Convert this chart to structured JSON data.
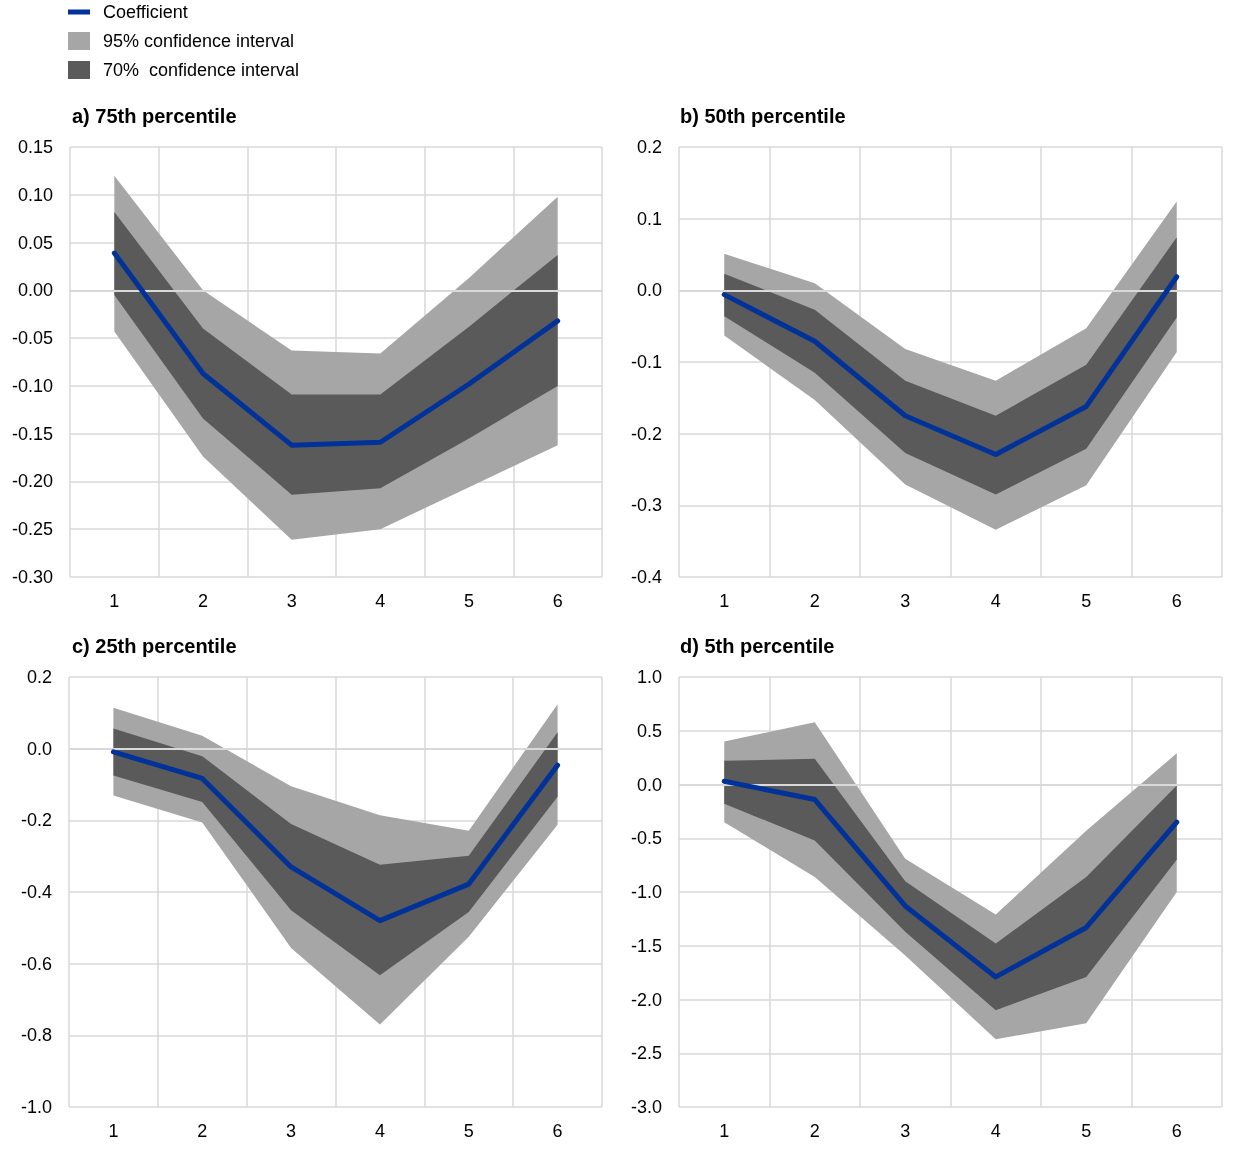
{
  "chart_data": [
    {
      "type": "line",
      "title": "a) 75th percentile",
      "categories": [
        "1",
        "2",
        "3",
        "4",
        "5",
        "6"
      ],
      "series": [
        {
          "name": "Coefficient",
          "color": "#003299",
          "values": [
            0.039,
            -0.087,
            -0.162,
            -0.159,
            -0.098,
            -0.032
          ]
        },
        {
          "name": "95% confidence interval",
          "color": "#a6a6a6",
          "values": [
            null,
            null,
            null,
            null,
            null,
            null
          ],
          "lower": [
            -0.043,
            -0.174,
            -0.261,
            -0.25,
            -0.206,
            -0.162
          ],
          "upper": [
            0.12,
            0.0,
            -0.063,
            -0.066,
            0.013,
            0.098
          ]
        },
        {
          "name": "70%  confidence interval",
          "color": "#5a5a5a",
          "values": [
            null,
            null,
            null,
            null,
            null,
            null
          ],
          "lower": [
            -0.005,
            -0.134,
            -0.214,
            -0.207,
            -0.155,
            -0.1
          ],
          "upper": [
            0.082,
            -0.04,
            -0.109,
            -0.109,
            -0.038,
            0.037
          ]
        }
      ],
      "ylim": [
        -0.3,
        0.15
      ],
      "yticks": [
        {
          "value": -0.3,
          "label": "-0.30"
        },
        -0.25,
        {
          "value": -0.2,
          "label": "-0.20"
        },
        -0.15,
        {
          "value": -0.1,
          "label": "-0.10"
        },
        -0.05,
        {
          "value": 0,
          "label": "0.00"
        },
        0.05,
        {
          "value": 0.1,
          "label": "0.10"
        },
        0.15
      ],
      "grid": true,
      "legend": "top left",
      "marker": "none",
      "line_style": "solid",
      "ref_lines": [
        {
          "axis": "y",
          "value": 0,
          "color": "#d9d9d9"
        }
      ]
    },
    {
      "type": "line",
      "title": "b) 50th percentile",
      "categories": [
        "1",
        "2",
        "3",
        "4",
        "5",
        "6"
      ],
      "series": [
        {
          "color": "#003299",
          "values": [
            -0.006,
            -0.071,
            -0.175,
            -0.229,
            -0.162,
            0.019
          ]
        },
        {
          "color": "#a6a6a6",
          "values": [
            null,
            null,
            null,
            null,
            null,
            null
          ],
          "lower": [
            -0.063,
            -0.153,
            -0.271,
            -0.334,
            -0.272,
            -0.086
          ],
          "upper": [
            0.051,
            0.01,
            -0.082,
            -0.126,
            -0.053,
            0.124
          ]
        },
        {
          "color": "#5a5a5a",
          "values": [
            null,
            null,
            null,
            null,
            null,
            null
          ],
          "lower": [
            -0.036,
            -0.115,
            -0.227,
            -0.285,
            -0.221,
            -0.038
          ],
          "upper": [
            0.023,
            -0.027,
            -0.126,
            -0.175,
            -0.104,
            0.074
          ]
        }
      ],
      "ylim": [
        -0.4,
        0.2
      ],
      "yticks": [
        -0.4,
        -0.3,
        -0.2,
        -0.1,
        {
          "value": 0,
          "label": "0.0"
        },
        0.1,
        0.2
      ],
      "grid": true,
      "marker": "none",
      "line_style": "solid",
      "ref_lines": [
        {
          "axis": "y",
          "value": 0,
          "color": "#d9d9d9"
        }
      ]
    },
    {
      "type": "line",
      "title": "c) 25th percentile",
      "categories": [
        "1",
        "2",
        "3",
        "4",
        "5",
        "6"
      ],
      "series": [
        {
          "color": "#003299",
          "values": [
            -0.009,
            -0.083,
            -0.33,
            -0.48,
            -0.378,
            -0.046
          ]
        },
        {
          "color": "#a6a6a6",
          "values": [
            null,
            null,
            null,
            null,
            null,
            null
          ],
          "lower": [
            -0.131,
            -0.206,
            -0.556,
            -0.77,
            -0.525,
            -0.212
          ],
          "upper": [
            0.114,
            0.036,
            -0.105,
            -0.186,
            -0.229,
            0.124
          ]
        },
        {
          "color": "#5a5a5a",
          "values": [
            null,
            null,
            null,
            null,
            null,
            null
          ],
          "lower": [
            -0.075,
            -0.149,
            -0.451,
            -0.632,
            -0.456,
            -0.134
          ],
          "upper": [
            0.056,
            -0.021,
            -0.21,
            -0.324,
            -0.299,
            0.046
          ]
        }
      ],
      "ylim": [
        -1.0,
        0.2
      ],
      "yticks": [
        {
          "value": -1,
          "label": "-1.0"
        },
        -0.8,
        -0.6,
        -0.4,
        -0.2,
        {
          "value": 0,
          "label": "0.0"
        },
        0.2
      ],
      "grid": true,
      "marker": "none",
      "line_style": "solid",
      "ref_lines": [
        {
          "axis": "y",
          "value": 0,
          "color": "#d9d9d9"
        }
      ]
    },
    {
      "type": "line",
      "title": "d) 5th percentile",
      "categories": [
        "1",
        "2",
        "3",
        "4",
        "5",
        "6"
      ],
      "series": [
        {
          "color": "#003299",
          "values": [
            0.03,
            -0.14,
            -1.13,
            -1.79,
            -1.33,
            -0.35
          ]
        },
        {
          "color": "#a6a6a6",
          "values": [
            null,
            null,
            null,
            null,
            null,
            null
          ],
          "lower": [
            -0.35,
            -0.86,
            -1.59,
            -2.37,
            -2.22,
            -1.0
          ],
          "upper": [
            0.4,
            0.58,
            -0.69,
            -1.21,
            -0.43,
            0.29
          ]
        },
        {
          "color": "#5a5a5a",
          "values": [
            null,
            null,
            null,
            null,
            null,
            null
          ],
          "lower": [
            -0.18,
            -0.52,
            -1.37,
            -2.1,
            -1.79,
            -0.7
          ],
          "upper": [
            0.22,
            0.24,
            -0.9,
            -1.48,
            -0.86,
            -0.01
          ]
        }
      ],
      "ylim": [
        -3.0,
        1.0
      ],
      "yticks": [
        {
          "value": -3,
          "label": "-3.0"
        },
        -2.5,
        {
          "value": -2,
          "label": "-2.0"
        },
        -1.5,
        {
          "value": -1,
          "label": "-1.0"
        },
        -0.5,
        {
          "value": 0,
          "label": "0.0"
        },
        0.5,
        {
          "value": 1,
          "label": "1.0"
        }
      ],
      "grid": true,
      "marker": "none",
      "line_style": "solid",
      "ref_lines": [
        {
          "axis": "y",
          "value": 0,
          "color": "#d9d9d9"
        }
      ]
    }
  ]
}
